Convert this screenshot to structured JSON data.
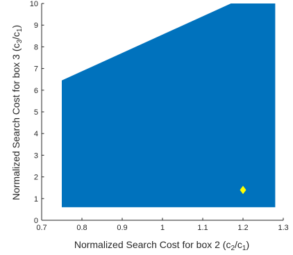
{
  "chart_data": {
    "type": "area",
    "title": "",
    "xlabel": {
      "text": "Normalized Search Cost for box 2 (c",
      "sub1": "2",
      "mid": "/c",
      "sub2": "1",
      "end": ")"
    },
    "ylabel": {
      "text": "Normalized Search Cost for box 3 (c",
      "sub1": "3",
      "mid": "/c",
      "sub2": "1",
      "end": ")"
    },
    "xlim": [
      0.7,
      1.3
    ],
    "ylim": [
      0,
      10
    ],
    "xticks": [
      0.7,
      0.8,
      0.9,
      1,
      1.1,
      1.2,
      1.3
    ],
    "xtick_labels": [
      "0.7",
      "0.8",
      "0.9",
      "1",
      "1.1",
      "1.2",
      "1.3"
    ],
    "yticks": [
      0,
      1,
      2,
      3,
      4,
      5,
      6,
      7,
      8,
      9,
      10
    ],
    "ytick_labels": [
      "0",
      "1",
      "2",
      "3",
      "4",
      "5",
      "6",
      "7",
      "8",
      "9",
      "10"
    ],
    "grid": false,
    "region": {
      "color": "#0072BD",
      "polygon": [
        [
          0.75,
          0.6
        ],
        [
          1.28,
          0.6
        ],
        [
          1.28,
          10
        ],
        [
          1.17,
          10
        ],
        [
          0.75,
          6.45
        ]
      ]
    },
    "marker": {
      "x": 1.2,
      "y": 1.4,
      "shape": "diamond",
      "color": "#FFFF00"
    }
  }
}
